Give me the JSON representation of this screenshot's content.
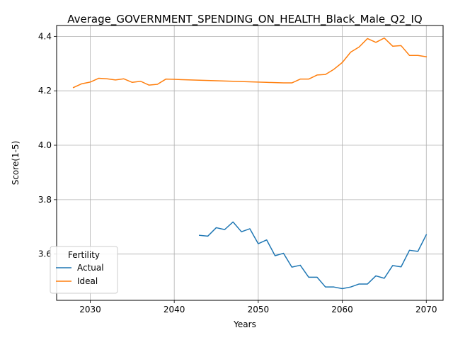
{
  "chart_data": {
    "type": "line",
    "title": "Average_GOVERNMENT_SPENDING_ON_HEALTH_Black_Male_Q2_IQ",
    "xlabel": "Years",
    "ylabel": "Score(1-5)",
    "xlim": [
      2026,
      2072
    ],
    "ylim": [
      3.43,
      4.44
    ],
    "xticks": [
      2030,
      2040,
      2050,
      2060,
      2070
    ],
    "yticks": [
      3.6,
      3.8,
      4.0,
      4.2,
      4.4
    ],
    "xtick_labels": [
      "2030",
      "2040",
      "2050",
      "2060",
      "2070"
    ],
    "ytick_labels": [
      "3.6",
      "3.8",
      "4.0",
      "4.2",
      "4.4"
    ],
    "grid": true,
    "legend": {
      "title": "Fertility",
      "placement": "lower-left"
    },
    "series": [
      {
        "name": "Actual",
        "color": "#1f77b4",
        "x": [
          2043,
          2044,
          2045,
          2046,
          2047,
          2048,
          2049,
          2050,
          2051,
          2052,
          2053,
          2054,
          2055,
          2056,
          2057,
          2058,
          2059,
          2060,
          2061,
          2062,
          2063,
          2064,
          2065,
          2066,
          2067,
          2068,
          2069,
          2070
        ],
        "values": [
          3.669,
          3.666,
          3.697,
          3.69,
          3.718,
          3.682,
          3.693,
          3.638,
          3.652,
          3.594,
          3.603,
          3.552,
          3.559,
          3.515,
          3.515,
          3.479,
          3.479,
          3.473,
          3.479,
          3.49,
          3.49,
          3.52,
          3.511,
          3.558,
          3.553,
          3.614,
          3.61,
          3.671
        ]
      },
      {
        "name": "Ideal",
        "color": "#ff7f0e",
        "x": [
          2028,
          2029,
          2030,
          2031,
          2032,
          2033,
          2034,
          2035,
          2036,
          2037,
          2038,
          2039,
          2040,
          2041,
          2042,
          2043,
          2044,
          2045,
          2046,
          2047,
          2048,
          2049,
          2050,
          2051,
          2052,
          2053,
          2054,
          2055,
          2056,
          2057,
          2058,
          2059,
          2060,
          2061,
          2062,
          2063,
          2064,
          2065,
          2066,
          2067,
          2068,
          2069,
          2070
        ],
        "values": [
          4.212,
          4.226,
          4.232,
          4.246,
          4.244,
          4.24,
          4.244,
          4.231,
          4.235,
          4.221,
          4.224,
          4.243,
          4.242,
          4.241,
          4.24,
          4.239,
          4.238,
          4.237,
          4.236,
          4.235,
          4.234,
          4.233,
          4.232,
          4.231,
          4.23,
          4.229,
          4.229,
          4.243,
          4.243,
          4.258,
          4.26,
          4.279,
          4.304,
          4.342,
          4.361,
          4.392,
          4.378,
          4.394,
          4.364,
          4.366,
          4.33,
          4.33,
          4.325
        ]
      }
    ]
  }
}
